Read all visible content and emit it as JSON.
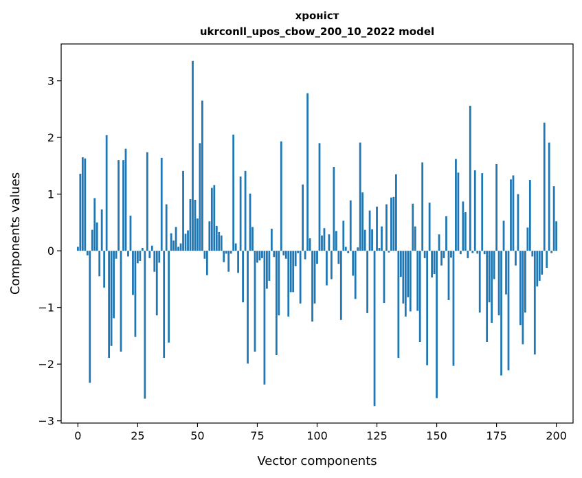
{
  "chart_data": {
    "type": "bar",
    "title": "хроніст",
    "subtitle": "ukrconll_upos_cbow_200_10_2022 model",
    "xlabel": "Vector components",
    "ylabel": "Components values",
    "xlim": [
      -7,
      207
    ],
    "ylim": [
      -3.04,
      3.65
    ],
    "xticks": [
      0,
      25,
      50,
      75,
      100,
      125,
      150,
      175,
      200
    ],
    "yticks": [
      -3,
      -2,
      -1,
      0,
      1,
      2,
      3
    ],
    "grid": false,
    "bar_color": "#1f77b4",
    "values": [
      0.07,
      1.36,
      1.65,
      1.63,
      -0.08,
      -2.33,
      0.37,
      0.93,
      0.5,
      -0.45,
      0.73,
      -0.65,
      2.04,
      -1.89,
      -1.68,
      -1.19,
      -0.14,
      1.6,
      -1.78,
      1.6,
      1.8,
      -0.1,
      0.62,
      -0.78,
      -1.52,
      -0.22,
      -0.18,
      0.05,
      -2.61,
      1.74,
      -0.13,
      0.09,
      -0.37,
      -1.14,
      -0.21,
      1.64,
      -1.89,
      0.82,
      -1.62,
      0.31,
      0.18,
      0.42,
      0.07,
      0.13,
      1.41,
      0.3,
      0.36,
      0.91,
      3.35,
      0.9,
      0.57,
      1.9,
      2.65,
      -0.14,
      -0.43,
      0.52,
      1.11,
      1.16,
      0.44,
      0.33,
      0.27,
      -0.2,
      -0.05,
      -0.37,
      -0.05,
      2.05,
      0.13,
      -0.39,
      1.31,
      -0.91,
      1.41,
      -1.99,
      1.01,
      0.42,
      -1.78,
      -0.21,
      -0.17,
      -0.13,
      -2.36,
      -0.67,
      -0.53,
      0.39,
      -0.11,
      -1.84,
      -1.14,
      1.93,
      -0.08,
      -0.14,
      -1.16,
      -0.73,
      -0.73,
      -0.27,
      -0.04,
      -0.93,
      1.17,
      -0.15,
      2.78,
      0.22,
      -1.25,
      -0.93,
      -0.23,
      1.9,
      0.27,
      0.4,
      -0.61,
      0.29,
      -0.5,
      1.48,
      0.35,
      -0.23,
      -1.22,
      0.53,
      0.07,
      -0.04,
      0.89,
      -0.44,
      -0.85,
      0.06,
      1.91,
      1.03,
      0.37,
      -1.1,
      0.71,
      0.38,
      -2.74,
      0.78,
      0.05,
      0.43,
      -0.92,
      0.82,
      -0.03,
      0.94,
      0.95,
      1.35,
      -1.89,
      -0.46,
      -0.93,
      -1.16,
      -0.82,
      -1.07,
      0.83,
      0.43,
      -1.06,
      -1.61,
      1.56,
      -0.13,
      -2.02,
      0.85,
      -0.47,
      -0.41,
      -2.6,
      0.29,
      -0.26,
      -0.13,
      0.61,
      -0.87,
      -0.12,
      -2.03,
      1.62,
      1.38,
      -0.06,
      0.87,
      0.68,
      -0.13,
      2.56,
      -0.04,
      1.42,
      -0.05,
      -1.09,
      1.37,
      -0.06,
      -1.61,
      -0.91,
      -1.27,
      -0.5,
      1.53,
      -1.14,
      -2.2,
      0.53,
      -0.77,
      -2.11,
      1.26,
      1.33,
      -0.26,
      1.0,
      -1.31,
      -1.65,
      -1.09,
      0.41,
      1.25,
      -0.1,
      -1.83,
      -0.63,
      -0.53,
      -0.42,
      2.26,
      -0.3,
      1.91,
      -0.04,
      1.14,
      0.52
    ]
  }
}
